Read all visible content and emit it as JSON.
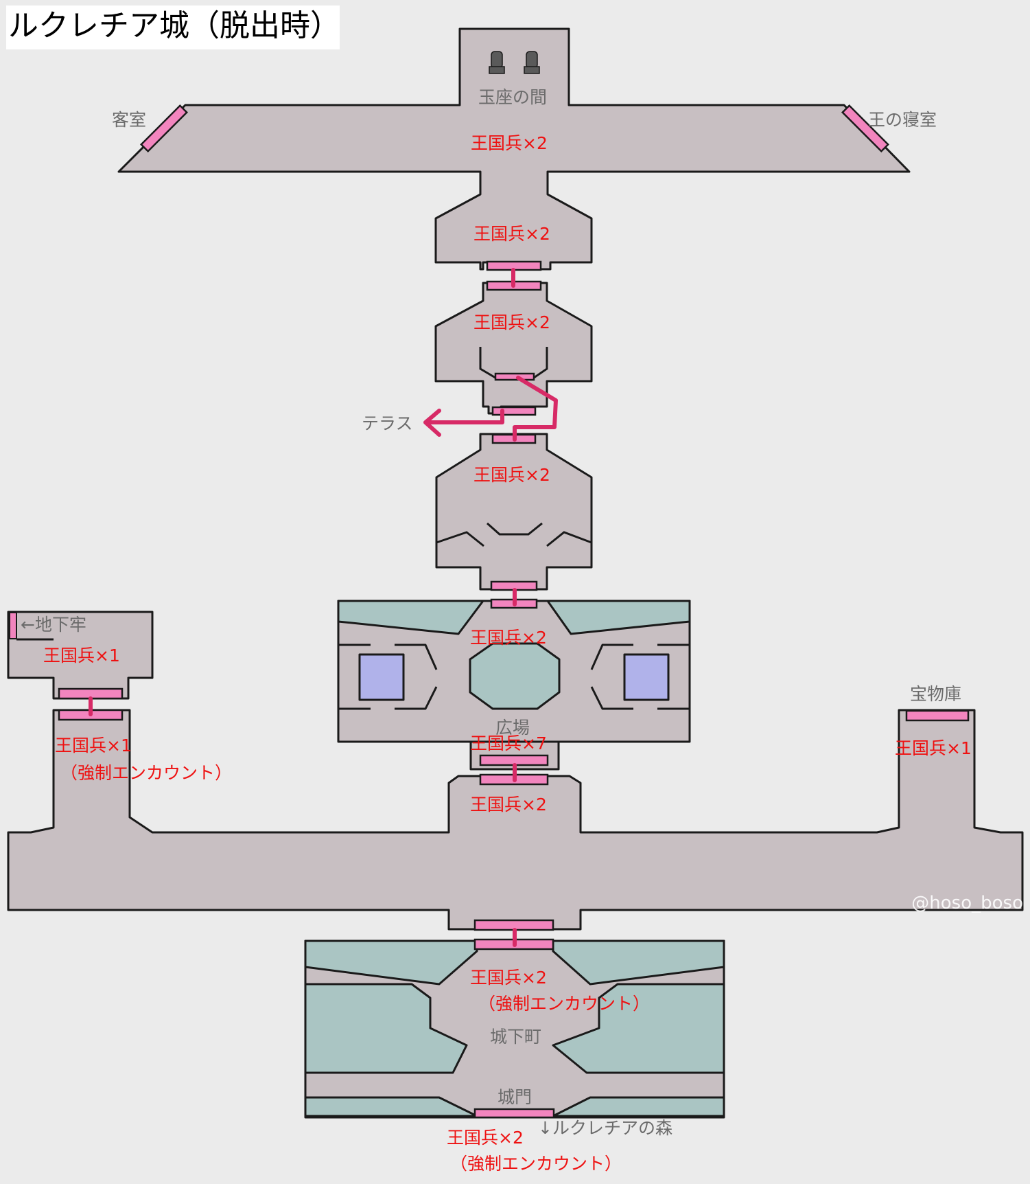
{
  "title": "ルクレチア城（脱出時）",
  "colors": {
    "background": "#ebebeb",
    "floor": "#c8bfc2",
    "wall_outline": "#1a1a1a",
    "water": "#aac5c3",
    "pillar": "#b0b2ea",
    "door": "#f285be",
    "route": "#d72a66",
    "enemy_text": "#ee1111",
    "room_text": "#6b6b6b"
  },
  "rooms": {
    "throne": "玉座の間",
    "guest": "客室",
    "king_bedroom": "王の寝室",
    "terrace": "テラス",
    "dungeon": "←地下牢",
    "plaza": "広場",
    "treasury": "宝物庫",
    "town": "城下町",
    "gate": "城門",
    "forest": "↓ルクレチアの森"
  },
  "enemies": {
    "throne_hall": "王国兵×2",
    "corridor_1": "王国兵×2",
    "corridor_2": "王国兵×2",
    "corridor_3": "王国兵×2",
    "plaza_top": "王国兵×2",
    "plaza_bottom": "王国兵×7",
    "dungeon": "王国兵×1",
    "west_tower": "王国兵×1",
    "treasury": "王国兵×1",
    "great_hall": "王国兵×2",
    "town": "王国兵×2",
    "gate": "王国兵×2"
  },
  "forced": {
    "west_tower": "（強制エンカウント）",
    "town": "（強制エンカウント）",
    "gate": "（強制エンカウント）"
  },
  "watermark": "@hoso_boso",
  "icons": [
    "throne-icon",
    "throne-icon",
    "route-arrow-icon"
  ]
}
